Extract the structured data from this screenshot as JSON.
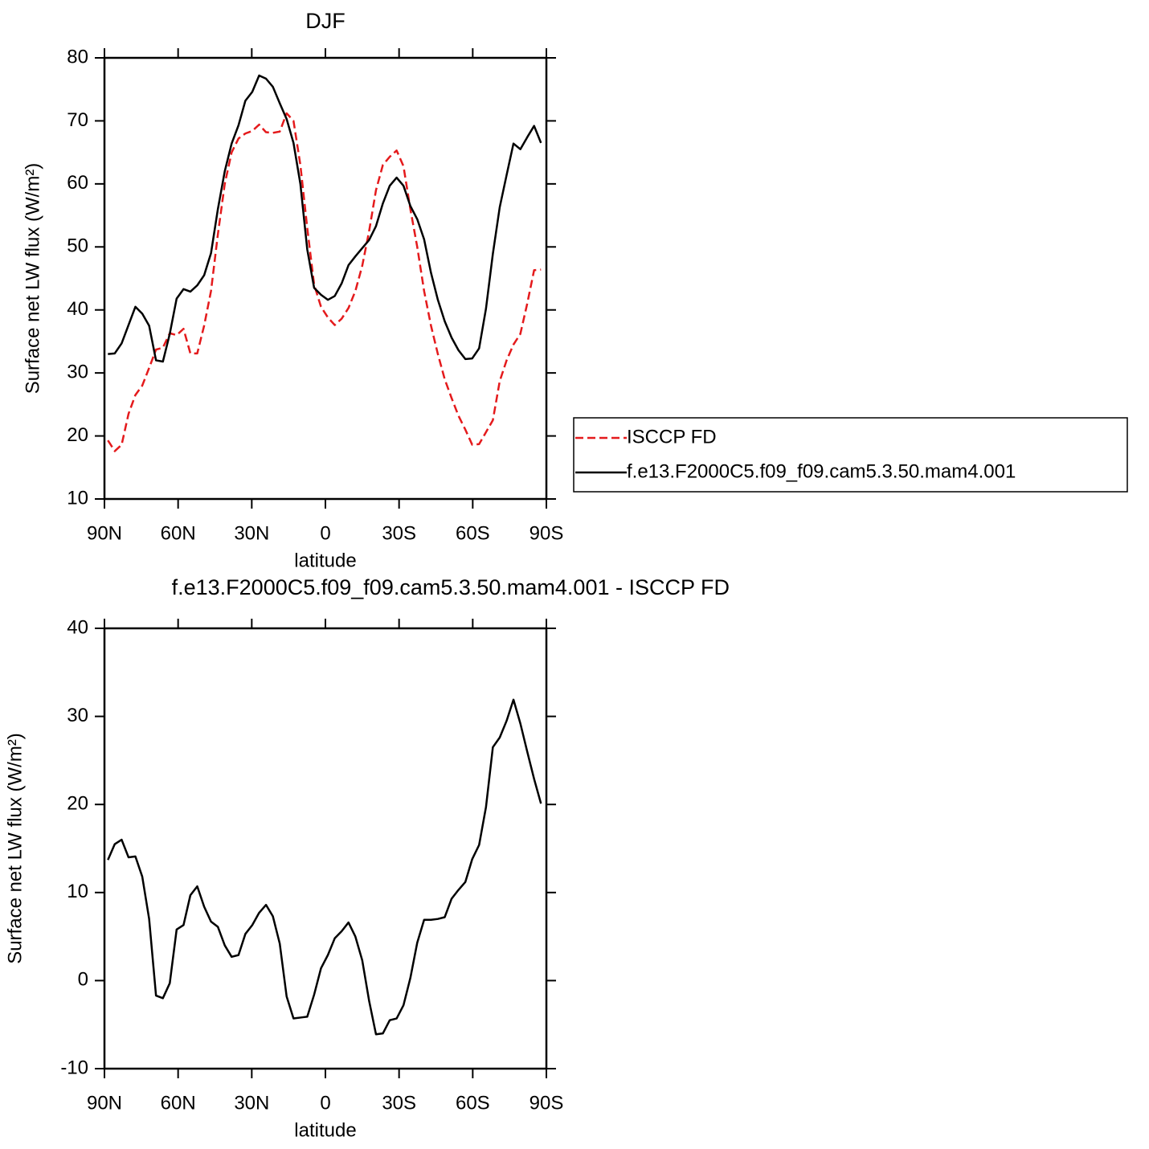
{
  "chart_data": [
    {
      "type": "line",
      "title": "DJF",
      "x_label": "latitude",
      "y_label": "Surface net LW flux (W/m²)",
      "x": [
        88.6,
        85.8,
        83,
        80.2,
        77.4,
        74.6,
        71.8,
        69,
        66.2,
        63.4,
        60.6,
        57.8,
        55,
        52.2,
        49.4,
        46.6,
        43.8,
        41,
        38.2,
        35.4,
        32.6,
        29.8,
        27,
        24.2,
        21.4,
        18.6,
        15.8,
        13,
        10.2,
        7.4,
        4.6,
        1.8,
        -1,
        -3.8,
        -6.6,
        -9.4,
        -12.2,
        -15,
        -17.8,
        -20.6,
        -23.4,
        -26.2,
        -29,
        -31.8,
        -34.6,
        -37.4,
        -40.2,
        -43,
        -45.8,
        -48.6,
        -51.4,
        -54.2,
        -57,
        -59.8,
        -62.6,
        -65.4,
        -68.2,
        -71,
        -73.8,
        -76.6,
        -79.4,
        -82.2,
        -85,
        -87.8
      ],
      "series": [
        {
          "name": "ISCCP FD",
          "color": "#e41a1c",
          "dash": true,
          "values": [
            19.3,
            17.6,
            18.6,
            23.5,
            26.5,
            28,
            30.8,
            33.7,
            34,
            36.3,
            36,
            37,
            33.1,
            33.1,
            37.5,
            43,
            52,
            60,
            65,
            67.2,
            68,
            68.4,
            69.4,
            68.2,
            68.1,
            68.3,
            71.2,
            70,
            63,
            53,
            44,
            40.5,
            38.8,
            37.6,
            38.6,
            40.3,
            43,
            47,
            52.5,
            59,
            63,
            64.3,
            65.3,
            62.8,
            56,
            50,
            43,
            37.5,
            33,
            29,
            26,
            23.2,
            21,
            18.6,
            18.7,
            20.6,
            22.5,
            28.7,
            32,
            34.5,
            36.2,
            41,
            46.3,
            46.4
          ]
        },
        {
          "name": "f.e13.F2000C5.f09_f09.cam5.3.50.mam4.001",
          "color": "#000000",
          "dash": false,
          "values": [
            33,
            33.1,
            34.7,
            37.6,
            40.5,
            39.4,
            37.5,
            32,
            31.8,
            36.2,
            41.8,
            43.3,
            42.9,
            43.9,
            45.5,
            49,
            56,
            62,
            66.4,
            69.3,
            73.2,
            74.6,
            77.2,
            76.7,
            75.4,
            72.8,
            70.3,
            66.5,
            60,
            49.6,
            43.5,
            42.4,
            41.6,
            42.2,
            44.2,
            47.1,
            48.5,
            49.8,
            51.1,
            53.3,
            56.9,
            59.7,
            61,
            59.7,
            56.5,
            54.4,
            51.2,
            45.9,
            41.6,
            38.2,
            35.6,
            33.6,
            32.2,
            32.3,
            33.9,
            40.2,
            48.9,
            56.3,
            61.4,
            66.4,
            65.5,
            67.4,
            69.2,
            66.5
          ]
        }
      ],
      "xlim": [
        90,
        -90
      ],
      "xticks": [
        {
          "value": 90,
          "label": "90N"
        },
        {
          "value": 60,
          "label": "60N"
        },
        {
          "value": 30,
          "label": "30N"
        },
        0,
        {
          "value": -30,
          "label": "30S"
        },
        {
          "value": -60,
          "label": "60S"
        },
        {
          "value": -90,
          "label": "90S"
        }
      ],
      "ylim": [
        10,
        80
      ],
      "yticks": [
        10,
        20,
        30,
        40,
        50,
        60,
        70,
        80
      ],
      "legend": "right"
    },
    {
      "type": "line",
      "title": "f.e13.F2000C5.f09_f09.cam5.3.50.mam4.001 - ISCCP FD",
      "x_label": "latitude",
      "y_label": "Surface net LW flux (W/m²)",
      "x": [
        88.6,
        85.8,
        83,
        80.2,
        77.4,
        74.6,
        71.8,
        69,
        66.2,
        63.4,
        60.6,
        57.8,
        55,
        52.2,
        49.4,
        46.6,
        43.8,
        41,
        38.2,
        35.4,
        32.6,
        29.8,
        27,
        24.2,
        21.4,
        18.6,
        15.8,
        13,
        10.2,
        7.4,
        4.6,
        1.8,
        -1,
        -3.8,
        -6.6,
        -9.4,
        -12.2,
        -15,
        -17.8,
        -20.6,
        -23.4,
        -26.2,
        -29,
        -31.8,
        -34.6,
        -37.4,
        -40.2,
        -43,
        -45.8,
        -48.6,
        -51.4,
        -54.2,
        -57,
        -59.8,
        -62.6,
        -65.4,
        -68.2,
        -71,
        -73.8,
        -76.6,
        -79.4,
        -82.2,
        -85,
        -87.8
      ],
      "series": [
        {
          "color": "#000000",
          "dash": false,
          "values": [
            13.7,
            15.5,
            16,
            14,
            14.1,
            11.8,
            7,
            -1.7,
            -2,
            -0.3,
            5.8,
            6.3,
            9.7,
            10.7,
            8.4,
            6.7,
            6.1,
            4,
            2.7,
            2.9,
            5.3,
            6.3,
            7.7,
            8.6,
            7.3,
            4.2,
            -1.8,
            -4.3,
            -4.2,
            -4.1,
            -1.6,
            1.4,
            2.9,
            4.8,
            5.6,
            6.6,
            5,
            2.3,
            -2.3,
            -6.1,
            -6,
            -4.5,
            -4.3,
            -2.8,
            0.3,
            4.3,
            6.9,
            6.9,
            7,
            7.2,
            9.3,
            10.3,
            11.2,
            13.8,
            15.4,
            19.7,
            26.5,
            27.6,
            29.5,
            31.9,
            29.2,
            26,
            22.9,
            20.1
          ]
        }
      ],
      "xlim": [
        90,
        -90
      ],
      "xticks": [
        {
          "value": 90,
          "label": "90N"
        },
        {
          "value": 60,
          "label": "60N"
        },
        {
          "value": 30,
          "label": "30N"
        },
        0,
        {
          "value": -30,
          "label": "30S"
        },
        {
          "value": -60,
          "label": "60S"
        },
        {
          "value": -90,
          "label": "90S"
        }
      ],
      "ylim": [
        -10,
        40
      ],
      "yticks": [
        -10,
        0,
        10,
        20,
        30,
        40
      ]
    }
  ]
}
